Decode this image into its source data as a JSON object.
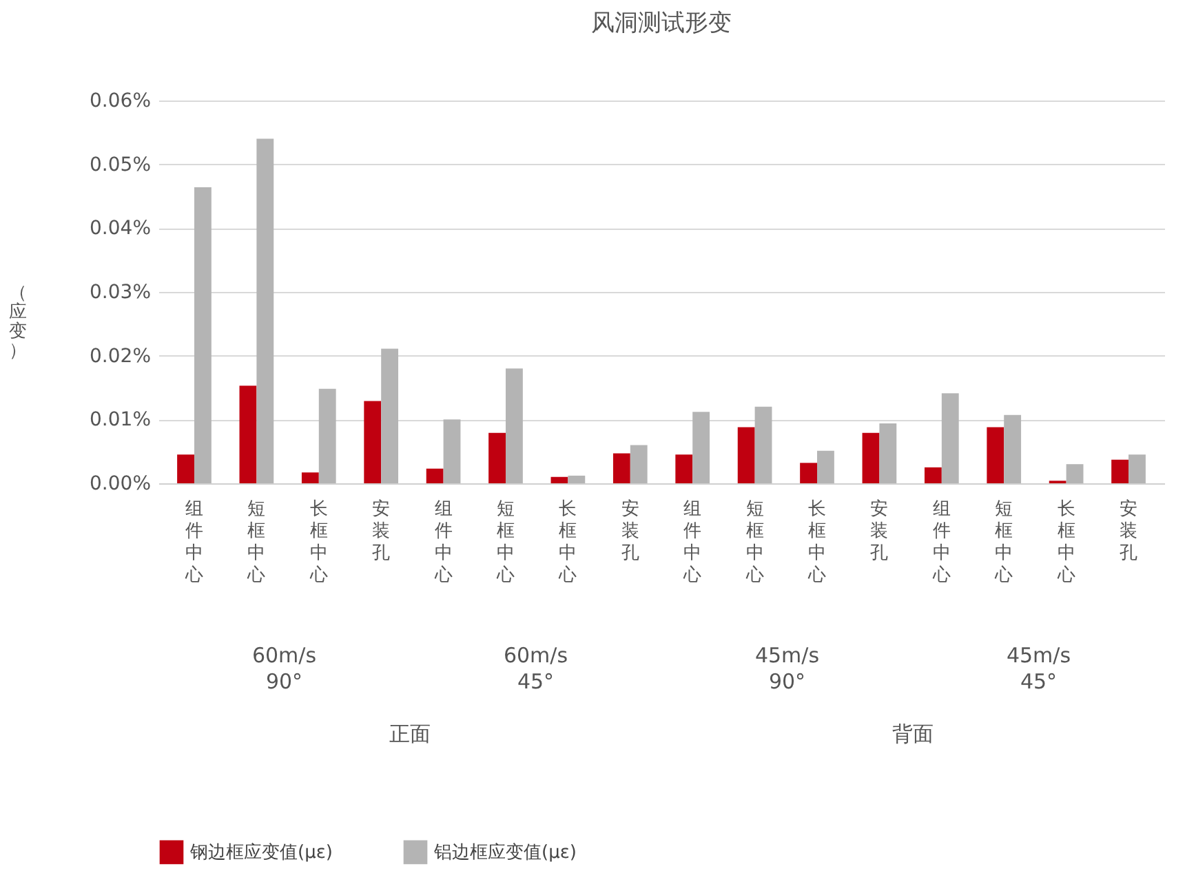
{
  "chart_data": {
    "type": "bar",
    "title": "风洞测试形变",
    "ylabel": "（应变）",
    "categories": [
      "组件中心",
      "短框中心",
      "长框中心",
      "安装孔",
      "组件中心",
      "短框中心",
      "长框中心",
      "安装孔",
      "组件中心",
      "短框中心",
      "长框中心",
      "安装孔",
      "组件中心",
      "短框中心",
      "长框中心",
      "安装孔"
    ],
    "series": [
      {
        "name": "钢边框应变值(με)",
        "color": "#c00010",
        "values": [
          0.0045,
          0.0153,
          0.0017,
          0.0129,
          0.0023,
          0.0079,
          0.001,
          0.0047,
          0.0045,
          0.0088,
          0.0032,
          0.0079,
          0.0025,
          0.0088,
          0.0004,
          0.0037
        ]
      },
      {
        "name": "铝边框应变值(με)",
        "color": "#b4b4b4",
        "values": [
          0.0464,
          0.054,
          0.0148,
          0.0211,
          0.01,
          0.018,
          0.0012,
          0.006,
          0.0112,
          0.012,
          0.0051,
          0.0094,
          0.0141,
          0.0107,
          0.003,
          0.0045
        ]
      }
    ],
    "annotations": [
      "60m/s 90°",
      "60m/s 45°",
      "45m/s 90°",
      "45m/s 45°",
      "正面",
      "背面"
    ],
    "ylim": [
      0,
      0.06
    ],
    "yticks": [
      {
        "value": 0,
        "label": "0.00%"
      },
      {
        "value": 0.01,
        "label": "0.01%"
      },
      {
        "value": 0.02,
        "label": "0.02%"
      },
      {
        "value": 0.03,
        "label": "0.03%"
      },
      {
        "value": 0.04,
        "label": "0.04%"
      },
      {
        "value": 0.05,
        "label": "0.05%"
      },
      {
        "value": 0.06,
        "label": "0.06%"
      }
    ],
    "grid": "y",
    "legend": "bottom"
  }
}
